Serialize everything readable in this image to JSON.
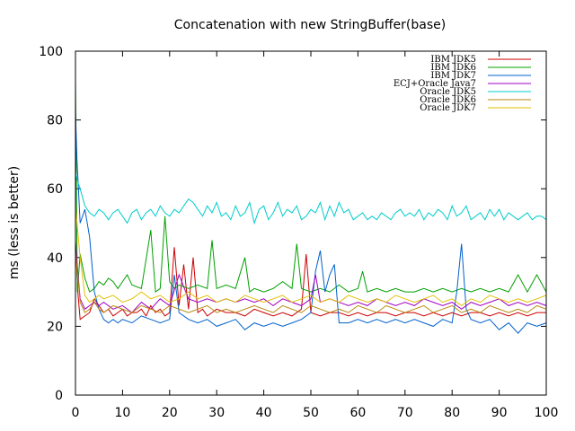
{
  "chart_data": {
    "type": "line",
    "title": "Concatenation with new StringBuffer(base)",
    "xlabel": "",
    "ylabel": "ms (less is better)",
    "xlim": [
      0,
      100
    ],
    "ylim": [
      0,
      100
    ],
    "xticks": [
      0,
      10,
      20,
      30,
      40,
      50,
      60,
      70,
      80,
      90,
      100
    ],
    "yticks": [
      0,
      20,
      40,
      60,
      80,
      100
    ],
    "grid": false,
    "legend_position": "top-right",
    "series": [
      {
        "name": "IBM JDK5",
        "color": "#cc0000",
        "x": [
          0,
          0.5,
          1,
          2,
          3,
          4,
          5,
          6,
          7,
          8,
          9,
          10,
          11,
          12,
          13,
          14,
          15,
          16,
          17,
          18,
          19,
          20,
          21,
          22,
          23,
          24,
          25,
          26,
          27,
          28,
          29,
          30,
          32,
          34,
          36,
          38,
          40,
          42,
          44,
          46,
          48,
          49,
          50,
          52,
          54,
          56,
          58,
          60,
          62,
          64,
          66,
          68,
          70,
          72,
          74,
          76,
          78,
          80,
          82,
          84,
          86,
          88,
          90,
          92,
          94,
          96,
          98,
          100
        ],
        "values": [
          45,
          30,
          22,
          23,
          24,
          28,
          26,
          24,
          25,
          23,
          24,
          25,
          23,
          24,
          24,
          25,
          23,
          26,
          24,
          25,
          23,
          24,
          43,
          26,
          38,
          25,
          40,
          24,
          25,
          23,
          24,
          25,
          24,
          24,
          23,
          25,
          24,
          23,
          24,
          23,
          25,
          41,
          24,
          23,
          24,
          24,
          23,
          24,
          23,
          24,
          24,
          23,
          24,
          24,
          23,
          24,
          23,
          24,
          23,
          24,
          24,
          23,
          24,
          23,
          24,
          23,
          24,
          24
        ]
      },
      {
        "name": "IBM JDK6",
        "color": "#00a000",
        "x": [
          0,
          0.4,
          1,
          2,
          3,
          4,
          5,
          6,
          7,
          8,
          9,
          10,
          11,
          12,
          14,
          16,
          17,
          18,
          19,
          20,
          21,
          22,
          24,
          26,
          28,
          29,
          30,
          32,
          34,
          36,
          37,
          38,
          40,
          42,
          44,
          46,
          47,
          48,
          50,
          52,
          54,
          56,
          58,
          60,
          61,
          62,
          64,
          66,
          68,
          70,
          72,
          74,
          76,
          78,
          80,
          82,
          84,
          86,
          88,
          90,
          92,
          94,
          96,
          98,
          100
        ],
        "values": [
          92,
          30,
          41,
          34,
          30,
          31,
          33,
          32,
          34,
          33,
          31,
          33,
          35,
          32,
          31,
          48,
          30,
          31,
          52,
          33,
          31,
          32,
          31,
          32,
          31,
          45,
          31,
          32,
          31,
          40,
          30,
          31,
          30,
          31,
          33,
          31,
          44,
          31,
          30,
          31,
          30,
          32,
          30,
          31,
          36,
          30,
          31,
          30,
          31,
          30,
          30,
          31,
          30,
          31,
          30,
          31,
          30,
          31,
          30,
          31,
          30,
          35,
          30,
          35,
          30
        ]
      },
      {
        "name": "IBM JDK7",
        "color": "#0060cc",
        "x": [
          0,
          0.3,
          1,
          2,
          3,
          4,
          5,
          6,
          7,
          8,
          9,
          10,
          12,
          14,
          16,
          18,
          20,
          21,
          22,
          24,
          26,
          28,
          30,
          32,
          34,
          36,
          38,
          40,
          42,
          44,
          46,
          48,
          50,
          51,
          52,
          53,
          54,
          55,
          56,
          58,
          60,
          62,
          64,
          66,
          68,
          70,
          72,
          74,
          76,
          78,
          80,
          81,
          82,
          83,
          84,
          86,
          88,
          90,
          92,
          94,
          96,
          98,
          100
        ],
        "values": [
          82,
          69,
          50,
          54,
          46,
          30,
          25,
          22,
          21,
          22,
          21,
          22,
          21,
          23,
          22,
          21,
          22,
          35,
          24,
          22,
          21,
          22,
          20,
          21,
          22,
          19,
          21,
          20,
          21,
          20,
          21,
          22,
          24,
          36,
          42,
          30,
          35,
          38,
          21,
          21,
          22,
          21,
          22,
          21,
          22,
          21,
          22,
          21,
          20,
          22,
          21,
          30,
          44,
          25,
          22,
          21,
          22,
          19,
          21,
          18,
          21,
          20,
          21
        ]
      },
      {
        "name": "ECJ+Oracle Java7",
        "color": "#a000c0",
        "x": [
          0,
          1,
          2,
          3,
          4,
          5,
          6,
          8,
          10,
          12,
          14,
          16,
          18,
          20,
          22,
          24,
          26,
          28,
          30,
          32,
          34,
          36,
          38,
          40,
          42,
          44,
          46,
          48,
          50,
          51,
          52,
          54,
          56,
          58,
          60,
          62,
          64,
          66,
          68,
          70,
          72,
          74,
          76,
          78,
          80,
          82,
          84,
          86,
          88,
          90,
          92,
          94,
          96,
          98,
          100
        ],
        "values": [
          44,
          28,
          25,
          26,
          27,
          26,
          27,
          25,
          26,
          24,
          27,
          25,
          28,
          26,
          35,
          28,
          27,
          28,
          27,
          28,
          27,
          28,
          27,
          28,
          26,
          28,
          27,
          26,
          28,
          35,
          27,
          28,
          27,
          26,
          27,
          26,
          28,
          27,
          26,
          27,
          26,
          28,
          27,
          26,
          27,
          25,
          27,
          26,
          27,
          28,
          26,
          27,
          26,
          27,
          26
        ]
      },
      {
        "name": "Oracle JDK5",
        "color": "#00cccc",
        "x": [
          0,
          0.5,
          1,
          2,
          3,
          4,
          5,
          6,
          7,
          8,
          9,
          10,
          11,
          12,
          13,
          14,
          15,
          16,
          17,
          18,
          19,
          20,
          21,
          22,
          23,
          24,
          25,
          26,
          27,
          28,
          29,
          30,
          31,
          32,
          33,
          34,
          35,
          36,
          37,
          38,
          39,
          40,
          41,
          42,
          43,
          44,
          45,
          46,
          47,
          48,
          49,
          50,
          51,
          52,
          53,
          54,
          55,
          56,
          57,
          58,
          59,
          60,
          61,
          62,
          63,
          64,
          65,
          66,
          67,
          68,
          69,
          70,
          71,
          72,
          73,
          74,
          75,
          76,
          77,
          78,
          79,
          80,
          81,
          82,
          83,
          84,
          85,
          86,
          87,
          88,
          89,
          90,
          91,
          92,
          93,
          94,
          95,
          96,
          97,
          98,
          99,
          100
        ],
        "values": [
          65,
          62,
          60,
          55,
          53,
          52,
          54,
          53,
          51,
          53,
          54,
          52,
          50,
          53,
          54,
          51,
          53,
          54,
          52,
          55,
          53,
          52,
          54,
          53,
          55,
          57,
          56,
          54,
          52,
          55,
          53,
          56,
          52,
          53,
          51,
          55,
          52,
          53,
          56,
          50,
          54,
          55,
          51,
          53,
          56,
          52,
          54,
          53,
          55,
          51,
          52,
          54,
          53,
          56,
          51,
          55,
          52,
          56,
          53,
          54,
          51,
          52,
          53,
          51,
          52,
          51,
          53,
          52,
          51,
          53,
          54,
          52,
          53,
          52,
          54,
          51,
          53,
          52,
          54,
          53,
          51,
          55,
          52,
          53,
          55,
          51,
          52,
          53,
          51,
          54,
          52,
          54,
          51,
          53,
          52,
          51,
          52,
          53,
          51,
          52,
          52,
          51
        ]
      },
      {
        "name": "Oracle JDK6",
        "color": "#b8860b",
        "x": [
          0,
          1,
          2,
          3,
          4,
          5,
          6,
          8,
          10,
          12,
          14,
          16,
          18,
          20,
          22,
          24,
          26,
          28,
          30,
          32,
          34,
          36,
          38,
          40,
          42,
          44,
          46,
          48,
          50,
          52,
          54,
          56,
          58,
          60,
          62,
          64,
          66,
          68,
          70,
          72,
          74,
          76,
          78,
          80,
          82,
          84,
          86,
          88,
          90,
          92,
          94,
          96,
          98,
          100
        ],
        "values": [
          42,
          27,
          24,
          25,
          27,
          25,
          24,
          26,
          25,
          24,
          26,
          25,
          24,
          26,
          25,
          24,
          25,
          26,
          24,
          25,
          24,
          25,
          26,
          25,
          24,
          26,
          25,
          24,
          26,
          25,
          24,
          25,
          24,
          26,
          25,
          24,
          26,
          25,
          24,
          25,
          26,
          24,
          25,
          26,
          24,
          25,
          24,
          26,
          25,
          24,
          25,
          24,
          26,
          25
        ]
      },
      {
        "name": "Oracle JDK7",
        "color": "#e0c000",
        "x": [
          0,
          1,
          2,
          3,
          4,
          5,
          6,
          8,
          10,
          12,
          14,
          16,
          18,
          20,
          22,
          24,
          26,
          28,
          30,
          32,
          34,
          36,
          38,
          40,
          42,
          44,
          46,
          48,
          50,
          52,
          54,
          56,
          58,
          60,
          62,
          64,
          66,
          68,
          70,
          72,
          74,
          76,
          78,
          80,
          82,
          84,
          86,
          88,
          90,
          92,
          94,
          96,
          98,
          100
        ],
        "values": [
          55,
          40,
          29,
          27,
          28,
          29,
          28,
          29,
          27,
          28,
          30,
          28,
          29,
          27,
          28,
          30,
          28,
          29,
          27,
          28,
          27,
          29,
          28,
          27,
          28,
          29,
          27,
          28,
          29,
          27,
          28,
          27,
          29,
          28,
          27,
          28,
          27,
          29,
          28,
          27,
          28,
          29,
          27,
          28,
          26,
          28,
          27,
          29,
          28,
          27,
          28,
          27,
          28,
          29
        ]
      }
    ]
  }
}
